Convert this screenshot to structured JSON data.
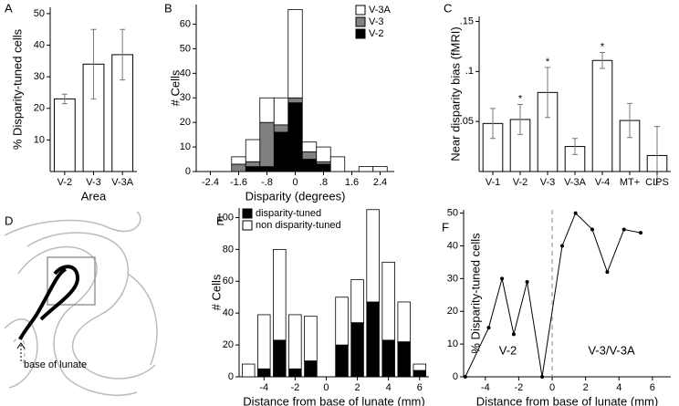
{
  "chart_data": [
    {
      "type": "bar",
      "panel": "A",
      "xlabel": "Area",
      "ylabel": "% Disparity-tuned cells",
      "categories": [
        "V-2",
        "V-3",
        "V-3A"
      ],
      "values": [
        23,
        34,
        37
      ],
      "errors": [
        1.5,
        11,
        8
      ],
      "color": "#ffffff",
      "ylim": [
        0,
        52
      ],
      "yticks": [
        10,
        20,
        30,
        40,
        50
      ]
    },
    {
      "type": "stacked_bar",
      "panel": "B",
      "xlabel": "Disparity (degrees)",
      "ylabel": "# Cells",
      "x": [
        -1.6,
        -1.2,
        -0.8,
        -0.4,
        0,
        0.4,
        0.8,
        1.2,
        2.0,
        2.4
      ],
      "series": [
        {
          "name": "V-2",
          "color": "#000000",
          "values": [
            0,
            2,
            2,
            16,
            28,
            5,
            3,
            0,
            0,
            0
          ]
        },
        {
          "name": "V-3",
          "color": "#808080",
          "values": [
            3,
            2,
            18,
            3,
            2,
            3,
            1,
            0,
            0,
            0
          ]
        },
        {
          "name": "V-3A",
          "color": "#ffffff",
          "values": [
            3,
            9,
            10,
            11,
            36,
            4,
            6,
            6,
            2,
            2
          ]
        }
      ],
      "xlim": [
        -2.8,
        2.8
      ],
      "xticks": [
        -2.4,
        -1.6,
        {
          "value": -0.8,
          "label": "-.8"
        },
        0,
        {
          "value": 0.8,
          "label": ".8"
        },
        1.6,
        2.4
      ],
      "ylim": [
        0,
        68
      ],
      "yticks": [
        0,
        10,
        20,
        30,
        40,
        50,
        60
      ],
      "legend": "top-right"
    },
    {
      "type": "bar",
      "panel": "C",
      "ylabel": "Near disparity bias (fMRI)",
      "categories": [
        "V-1",
        "V-2",
        "V-3",
        "V-3A",
        "V-4",
        "MT+",
        "CIPS"
      ],
      "values": [
        0.048,
        0.052,
        0.079,
        0.025,
        0.111,
        0.051,
        0.016
      ],
      "errors": [
        0.015,
        0.015,
        0.025,
        0.008,
        0.008,
        0.017,
        0.029
      ],
      "color": "#ffffff",
      "annotations": [
        {
          "category": "V-2",
          "text": "*"
        },
        {
          "category": "V-3",
          "text": "*"
        },
        {
          "category": "V-4",
          "text": "*"
        }
      ],
      "ylim": [
        0,
        0.155
      ],
      "yticks": [
        {
          "value": 0.05,
          "label": ".05"
        },
        {
          "value": 0.1,
          "label": ".1"
        },
        {
          "value": 0.15,
          "label": ".15"
        }
      ]
    },
    {
      "type": "diagram",
      "panel": "D",
      "annotation": "base of lunate"
    },
    {
      "type": "stacked_bar",
      "panel": "E",
      "xlabel": "Distance from base of lunate (mm)",
      "ylabel": "# Cells",
      "x": [
        -5,
        -4,
        -3,
        -2,
        -1,
        1,
        2,
        3,
        4,
        5,
        6
      ],
      "series": [
        {
          "name": "disparity-tuned",
          "color": "#000000",
          "values": [
            0,
            5,
            23,
            5,
            10,
            20,
            34,
            47,
            23,
            22,
            4
          ]
        },
        {
          "name": "non disparity-tuned",
          "color": "#ffffff",
          "values": [
            8,
            34,
            57,
            34,
            28,
            30,
            27,
            58,
            49,
            25,
            4
          ]
        }
      ],
      "xlim": [
        -5.6,
        6.6
      ],
      "xticks": [
        -4,
        -2,
        0,
        2,
        4,
        6
      ],
      "ylim": [
        0,
        106
      ],
      "yticks": [
        0,
        20,
        40,
        60,
        80,
        100
      ],
      "legend": "top-left"
    },
    {
      "type": "line",
      "panel": "F",
      "xlabel": "Distance from base of lunate (mm)",
      "ylabel": "% Disparity-tuned cells",
      "x": [
        -5.2,
        -3.8,
        -3.0,
        -2.3,
        -1.5,
        -0.6,
        0.6,
        1.4,
        2.4,
        3.3,
        4.3,
        5.3
      ],
      "series": [
        {
          "name": "% Disparity-tuned",
          "color": "#000000",
          "values": [
            0,
            15,
            30,
            13,
            29,
            0,
            40,
            50,
            45,
            32,
            45,
            44
          ]
        }
      ],
      "annotations": [
        {
          "text": "V-2"
        },
        {
          "text": "V-3/V-3A"
        }
      ],
      "reference_line_x": 0,
      "xlim": [
        -5.3,
        7.1
      ],
      "xticks": [
        -4,
        -2,
        0,
        2,
        4,
        6
      ],
      "ylim": [
        0,
        51
      ],
      "yticks": [
        0,
        10,
        20,
        30,
        40,
        50
      ]
    }
  ]
}
